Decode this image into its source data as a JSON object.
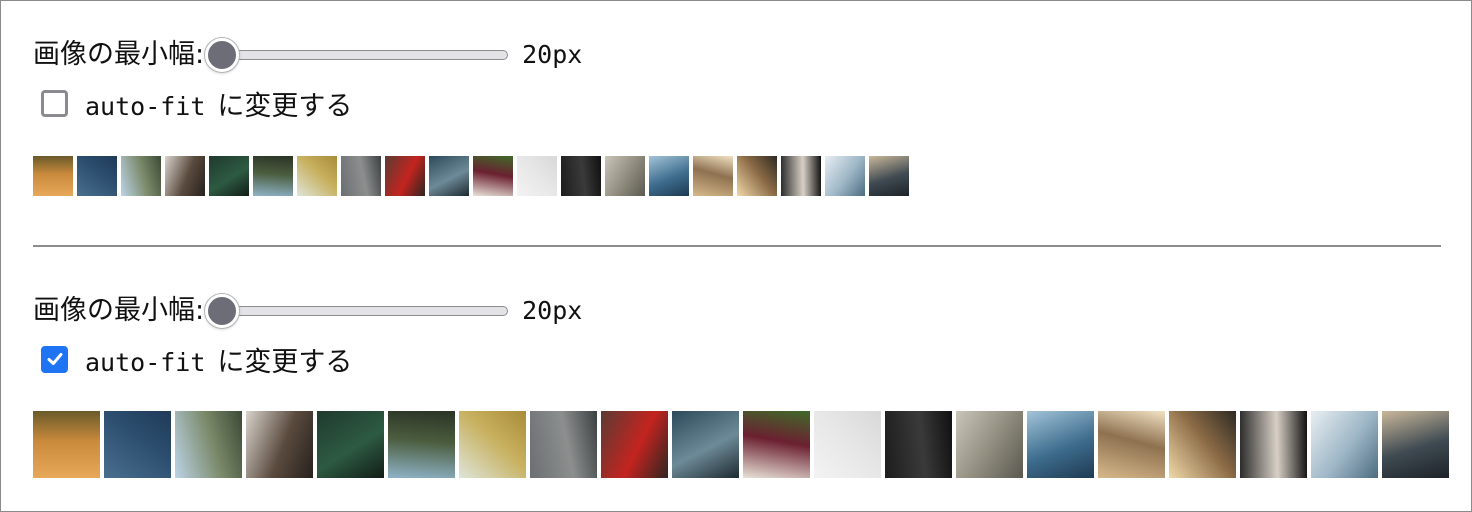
{
  "sections": [
    {
      "label": "画像の最小幅:",
      "slider_value": "20px",
      "slider_fraction": 0.0,
      "checkbox_checked": false,
      "checkbox_code": "auto-fit",
      "checkbox_text": "に変更する"
    },
    {
      "label": "画像の最小幅:",
      "slider_value": "20px",
      "slider_fraction": 0.0,
      "checkbox_checked": true,
      "checkbox_code": "auto-fit",
      "checkbox_text": "に変更する"
    }
  ],
  "images": [
    {
      "name": "hot-air-balloons-photo",
      "colors": [
        "#e7a85a",
        "#c98a3c",
        "#6a5a2a"
      ]
    },
    {
      "name": "ocean-waves-photo",
      "colors": [
        "#4a6f8e",
        "#2d4f70",
        "#1f3a57"
      ]
    },
    {
      "name": "coastal-building-photo",
      "colors": [
        "#bcd3e6",
        "#7b8a6a",
        "#3b4a35"
      ]
    },
    {
      "name": "pug-dog-photo",
      "colors": [
        "#d8d3cc",
        "#5a4a3e",
        "#26211d"
      ]
    },
    {
      "name": "forest-road-photo",
      "colors": [
        "#1f3a2e",
        "#2d5a42",
        "#111d17"
      ]
    },
    {
      "name": "mountain-road-photo",
      "colors": [
        "#8fb3c8",
        "#4b5d3e",
        "#2a3326"
      ]
    },
    {
      "name": "lone-tree-field-photo",
      "colors": [
        "#dde5d9",
        "#c8b160",
        "#a88c3a"
      ]
    },
    {
      "name": "tree-arch-photo",
      "colors": [
        "#6b6f72",
        "#8c8f8e",
        "#3b4042"
      ]
    },
    {
      "name": "red-mailbox-photo",
      "colors": [
        "#5b3b34",
        "#c4241f",
        "#2e2521"
      ]
    },
    {
      "name": "escalator-crowd-photo",
      "colors": [
        "#2d4a5a",
        "#6d8a98",
        "#1d2a30"
      ]
    },
    {
      "name": "onion-vegetables-photo",
      "colors": [
        "#e8e2d8",
        "#6b2030",
        "#3f6a2a"
      ]
    },
    {
      "name": "white-fog-photo",
      "colors": [
        "#f3f3f3",
        "#e6e6e6",
        "#d8d8d8"
      ]
    },
    {
      "name": "dark-diver-photo",
      "colors": [
        "#1d1d1d",
        "#3a3a3a",
        "#101010"
      ]
    },
    {
      "name": "rainy-window-photo",
      "colors": [
        "#c9c5b8",
        "#8e8a7c",
        "#5a5850"
      ]
    },
    {
      "name": "river-valley-aerial-photo",
      "colors": [
        "#a3c4d8",
        "#3e6d8e",
        "#1e3a52"
      ]
    },
    {
      "name": "grand-central-station-photo",
      "colors": [
        "#d6b98a",
        "#8e7150",
        "#f1e2c3"
      ]
    },
    {
      "name": "sunset-hill-photo",
      "colors": [
        "#f0d8a8",
        "#8a6a45",
        "#2e2a24"
      ]
    },
    {
      "name": "vintage-camera-photo",
      "colors": [
        "#2b2b2b",
        "#d8d0c6",
        "#111111"
      ]
    },
    {
      "name": "glass-building-photo",
      "colors": [
        "#e8eef2",
        "#9db6c6",
        "#4c6c80"
      ]
    },
    {
      "name": "cross-storm-sky-photo",
      "colors": [
        "#c9b89a",
        "#3f4a52",
        "#1d2328"
      ]
    }
  ]
}
